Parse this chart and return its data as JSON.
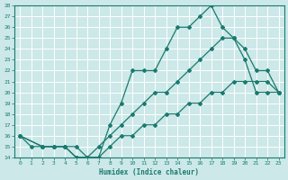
{
  "bg_color": "#cce8e8",
  "grid_color": "#ffffff",
  "line_color": "#1a7a6e",
  "xlabel": "Humidex (Indice chaleur)",
  "xlim": [
    -0.5,
    23.5
  ],
  "ylim": [
    14,
    28
  ],
  "xticks": [
    0,
    1,
    2,
    3,
    4,
    5,
    6,
    7,
    8,
    9,
    10,
    11,
    12,
    13,
    14,
    15,
    16,
    17,
    18,
    19,
    20,
    21,
    22,
    23
  ],
  "yticks": [
    14,
    15,
    16,
    17,
    18,
    19,
    20,
    21,
    22,
    23,
    24,
    25,
    26,
    27,
    28
  ],
  "lines": [
    {
      "x": [
        0,
        1,
        2,
        3,
        4,
        5,
        6,
        7,
        8,
        9,
        10,
        11,
        12,
        13,
        14,
        15,
        16,
        17,
        18,
        19,
        20,
        21,
        22,
        23
      ],
      "y": [
        16,
        15,
        15,
        15,
        15,
        14,
        14,
        14,
        17,
        19,
        22,
        22,
        22,
        24,
        26,
        26,
        27,
        28,
        26,
        25,
        23,
        20,
        20,
        20
      ]
    },
    {
      "x": [
        0,
        2,
        3,
        4,
        5,
        6,
        7,
        8,
        9,
        10,
        11,
        12,
        13,
        14,
        15,
        16,
        17,
        18,
        19,
        20,
        21,
        22,
        23
      ],
      "y": [
        16,
        15,
        15,
        15,
        15,
        14,
        15,
        16,
        17,
        18,
        19,
        20,
        20,
        21,
        22,
        23,
        24,
        25,
        25,
        24,
        22,
        22,
        20
      ]
    },
    {
      "x": [
        0,
        2,
        3,
        4,
        5,
        6,
        7,
        8,
        9,
        10,
        11,
        12,
        13,
        14,
        15,
        16,
        17,
        18,
        19,
        20,
        21,
        22,
        23
      ],
      "y": [
        16,
        15,
        15,
        15,
        14,
        14,
        14,
        15,
        16,
        16,
        17,
        17,
        18,
        18,
        19,
        19,
        20,
        20,
        21,
        21,
        21,
        21,
        20
      ]
    }
  ]
}
